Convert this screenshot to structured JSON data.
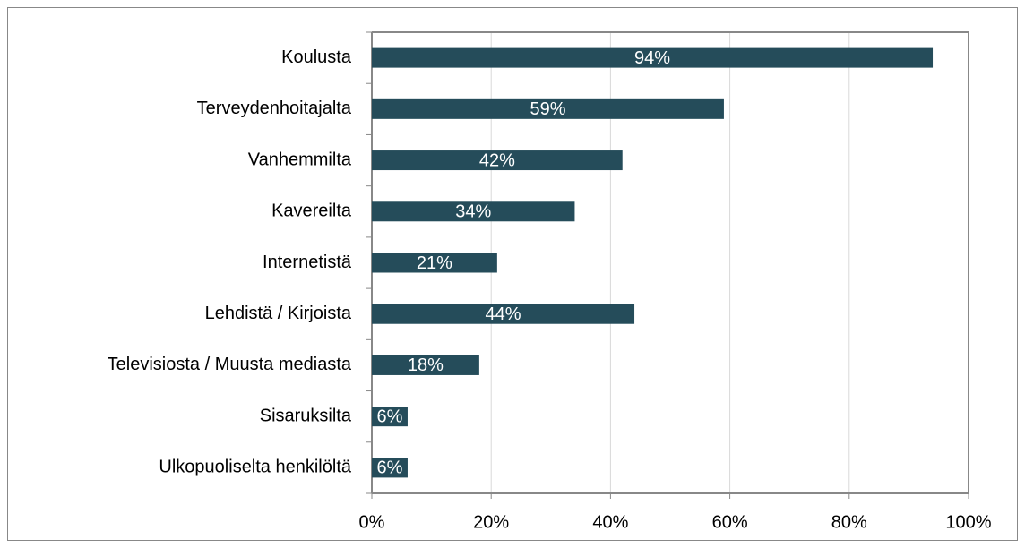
{
  "chart_data": {
    "type": "bar",
    "orientation": "horizontal",
    "categories": [
      "Koulusta",
      "Terveydenhoitajalta",
      "Vanhemmilta",
      "Kavereilta",
      "Internetistä",
      "Lehdistä / Kirjoista",
      "Televisiosta / Muusta mediasta",
      "Sisaruksilta",
      "Ulkopuoliselta henkilöltä"
    ],
    "values": [
      94,
      59,
      42,
      34,
      21,
      44,
      18,
      6,
      6
    ],
    "value_labels": [
      "94%",
      "59%",
      "42%",
      "34%",
      "21%",
      "44%",
      "18%",
      "6%",
      "6%"
    ],
    "color": "#254c5a",
    "xlim": [
      0,
      100
    ],
    "xticks": [
      {
        "value": 0,
        "label": "0%"
      },
      {
        "value": 20,
        "label": "20%"
      },
      {
        "value": 40,
        "label": "40%"
      },
      {
        "value": 60,
        "label": "60%"
      },
      {
        "value": 80,
        "label": "80%"
      },
      {
        "value": 100,
        "label": "100%"
      }
    ],
    "grid": true
  }
}
